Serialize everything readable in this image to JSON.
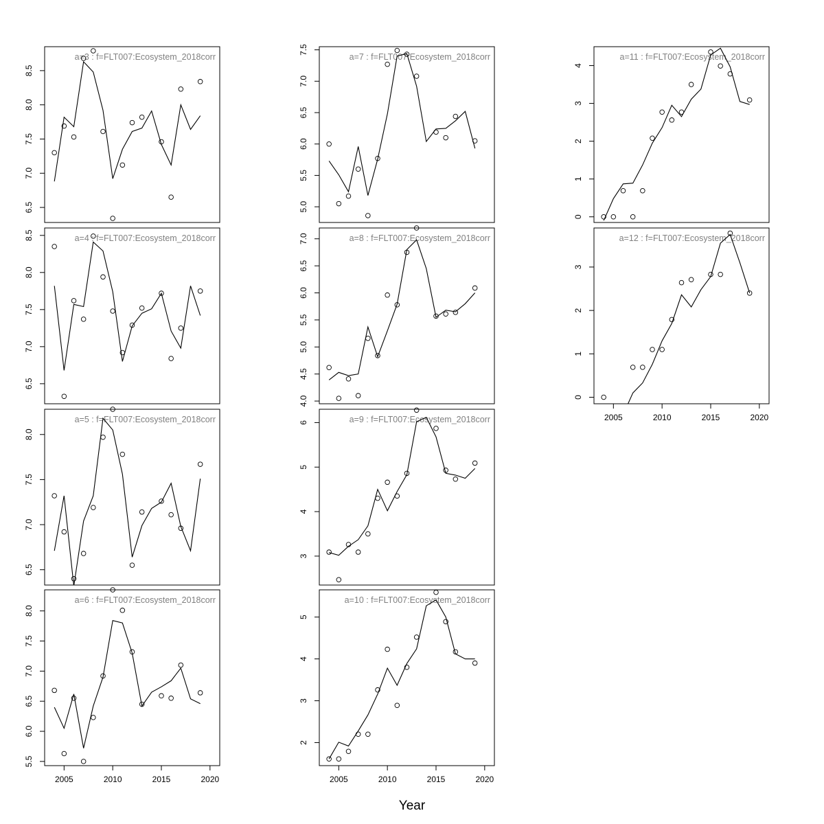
{
  "xlabel": "Year",
  "x_ticks": [
    2005,
    2010,
    2015,
    2020
  ],
  "chart_data": [
    {
      "type": "line",
      "title": "a=3  :  f=FLT007:Ecosystem_2018corr",
      "xlim": [
        2003,
        2021
      ],
      "ylim": [
        6.28,
        8.85
      ],
      "yticks": [
        6.5,
        7.0,
        7.5,
        8.0,
        8.5
      ],
      "observed": {
        "x": [
          2004,
          2005,
          2006,
          2007,
          2008,
          2009,
          2010,
          2011,
          2012,
          2013,
          2015,
          2016,
          2017,
          2019
        ],
        "y": [
          7.3,
          7.69,
          7.53,
          8.68,
          8.79,
          7.61,
          6.34,
          7.12,
          7.74,
          7.82,
          7.46,
          6.65,
          8.23,
          8.34
        ]
      },
      "fitted": {
        "x": [
          2004,
          2005,
          2006,
          2007,
          2008,
          2009,
          2010,
          2011,
          2012,
          2013,
          2014,
          2015,
          2016,
          2017,
          2018,
          2019
        ],
        "y": [
          6.88,
          7.82,
          7.68,
          8.63,
          8.48,
          7.92,
          6.92,
          7.35,
          7.61,
          7.66,
          7.91,
          7.42,
          7.12,
          8.0,
          7.64,
          7.84
        ]
      }
    },
    {
      "type": "line",
      "title": "a=4  :  f=FLT007:Ecosystem_2018corr",
      "xlim": [
        2003,
        2021
      ],
      "ylim": [
        6.23,
        8.6
      ],
      "yticks": [
        6.5,
        7.0,
        7.5,
        8.0,
        8.5
      ],
      "observed": {
        "x": [
          2004,
          2005,
          2006,
          2007,
          2008,
          2009,
          2010,
          2011,
          2012,
          2013,
          2015,
          2016,
          2017,
          2019
        ],
        "y": [
          8.35,
          6.33,
          7.62,
          7.37,
          8.49,
          7.94,
          7.48,
          6.92,
          7.29,
          7.52,
          7.72,
          6.84,
          7.25,
          7.75
        ]
      },
      "fitted": {
        "x": [
          2004,
          2005,
          2006,
          2007,
          2008,
          2009,
          2010,
          2011,
          2012,
          2013,
          2014,
          2015,
          2016,
          2017,
          2018,
          2019
        ],
        "y": [
          7.82,
          6.68,
          7.57,
          7.54,
          8.41,
          8.29,
          7.74,
          6.8,
          7.28,
          7.45,
          7.51,
          7.72,
          7.21,
          6.98,
          7.82,
          7.42
        ]
      }
    },
    {
      "type": "line",
      "title": "a=5  :  f=FLT007:Ecosystem_2018corr",
      "xlim": [
        2003,
        2021
      ],
      "ylim": [
        6.33,
        8.28
      ],
      "yticks": [
        6.5,
        7.0,
        7.5,
        8.0
      ],
      "observed": {
        "x": [
          2004,
          2005,
          2006,
          2007,
          2008,
          2009,
          2010,
          2011,
          2012,
          2013,
          2015,
          2016,
          2017,
          2019
        ],
        "y": [
          7.32,
          6.92,
          6.4,
          6.68,
          7.19,
          7.97,
          8.28,
          7.78,
          6.55,
          7.14,
          7.26,
          7.11,
          6.96,
          7.67
        ]
      },
      "fitted": {
        "x": [
          2004,
          2005,
          2006,
          2007,
          2008,
          2009,
          2010,
          2011,
          2012,
          2013,
          2014,
          2015,
          2016,
          2017,
          2018,
          2019
        ],
        "y": [
          6.71,
          7.32,
          6.32,
          7.04,
          7.32,
          8.18,
          8.05,
          7.56,
          6.64,
          6.99,
          7.18,
          7.25,
          7.46,
          6.98,
          6.71,
          7.51
        ]
      }
    },
    {
      "type": "line",
      "title": "a=6  :  f=FLT007:Ecosystem_2018corr",
      "xlim": [
        2003,
        2021
      ],
      "ylim": [
        5.43,
        8.35
      ],
      "yticks": [
        5.5,
        6.0,
        6.5,
        7.0,
        7.5,
        8.0
      ],
      "observed": {
        "x": [
          2004,
          2005,
          2006,
          2007,
          2008,
          2009,
          2010,
          2011,
          2012,
          2013,
          2015,
          2016,
          2017,
          2019
        ],
        "y": [
          6.68,
          5.63,
          6.55,
          5.5,
          6.23,
          6.92,
          8.35,
          8.01,
          7.32,
          6.45,
          6.59,
          6.55,
          7.1,
          6.64
        ]
      },
      "fitted": {
        "x": [
          2004,
          2005,
          2006,
          2007,
          2008,
          2009,
          2010,
          2011,
          2012,
          2013,
          2014,
          2015,
          2016,
          2017,
          2018,
          2019
        ],
        "y": [
          6.4,
          6.05,
          6.62,
          5.72,
          6.42,
          6.9,
          7.84,
          7.8,
          7.3,
          6.42,
          6.65,
          6.74,
          6.84,
          7.05,
          6.54,
          6.46
        ]
      }
    },
    {
      "type": "line",
      "title": "a=7  :  f=FLT007:Ecosystem_2018corr",
      "xlim": [
        2003,
        2021
      ],
      "ylim": [
        4.75,
        7.55
      ],
      "yticks": [
        5.0,
        5.5,
        6.0,
        6.5,
        7.0,
        7.5
      ],
      "observed": {
        "x": [
          2004,
          2005,
          2006,
          2007,
          2008,
          2009,
          2010,
          2011,
          2012,
          2013,
          2015,
          2016,
          2017,
          2019
        ],
        "y": [
          6.0,
          5.05,
          5.17,
          5.6,
          4.86,
          5.77,
          7.27,
          7.49,
          7.43,
          7.08,
          6.19,
          6.1,
          6.44,
          6.05
        ]
      },
      "fitted": {
        "x": [
          2004,
          2005,
          2006,
          2007,
          2008,
          2009,
          2010,
          2011,
          2012,
          2013,
          2014,
          2015,
          2016,
          2017,
          2018,
          2019
        ],
        "y": [
          5.73,
          5.51,
          5.24,
          5.96,
          5.18,
          5.76,
          6.48,
          7.4,
          7.44,
          6.92,
          6.04,
          6.24,
          6.25,
          6.37,
          6.52,
          5.93
        ]
      }
    },
    {
      "type": "line",
      "title": "a=8  :  f=FLT007:Ecosystem_2018corr",
      "xlim": [
        2003,
        2021
      ],
      "ylim": [
        3.95,
        7.2
      ],
      "yticks": [
        4.0,
        4.5,
        5.0,
        5.5,
        6.0,
        6.5,
        7.0
      ],
      "observed": {
        "x": [
          2004,
          2005,
          2006,
          2007,
          2008,
          2009,
          2010,
          2011,
          2012,
          2013,
          2015,
          2016,
          2017,
          2019
        ],
        "y": [
          4.62,
          4.05,
          4.41,
          4.1,
          5.16,
          4.84,
          5.96,
          5.78,
          6.75,
          7.2,
          5.57,
          5.61,
          5.64,
          6.09
        ]
      },
      "fitted": {
        "x": [
          2004,
          2005,
          2006,
          2007,
          2008,
          2009,
          2010,
          2011,
          2012,
          2013,
          2014,
          2015,
          2016,
          2017,
          2018,
          2019
        ],
        "y": [
          4.39,
          4.53,
          4.47,
          4.5,
          5.37,
          4.82,
          5.3,
          5.79,
          6.8,
          6.98,
          6.45,
          5.55,
          5.68,
          5.65,
          5.8,
          6.0
        ]
      }
    },
    {
      "type": "line",
      "title": "a=9  :  f=FLT007:Ecosystem_2018corr",
      "xlim": [
        2003,
        2021
      ],
      "ylim": [
        2.35,
        6.3
      ],
      "yticks": [
        3,
        4,
        5,
        6
      ],
      "observed": {
        "x": [
          2004,
          2005,
          2006,
          2007,
          2008,
          2009,
          2010,
          2011,
          2012,
          2013,
          2015,
          2016,
          2017,
          2019
        ],
        "y": [
          3.09,
          2.47,
          3.26,
          3.09,
          3.5,
          4.3,
          4.66,
          4.35,
          4.86,
          6.28,
          5.87,
          4.93,
          4.73,
          5.09
        ]
      },
      "fitted": {
        "x": [
          2004,
          2005,
          2006,
          2007,
          2008,
          2009,
          2010,
          2011,
          2012,
          2013,
          2014,
          2015,
          2016,
          2017,
          2018,
          2019
        ],
        "y": [
          3.08,
          3.02,
          3.22,
          3.37,
          3.68,
          4.5,
          4.02,
          4.45,
          4.83,
          6.02,
          6.12,
          5.68,
          4.86,
          4.82,
          4.75,
          4.97
        ]
      }
    },
    {
      "type": "line",
      "title": "a=10  :  f=FLT007:Ecosystem_2018corr",
      "xlim": [
        2003,
        2021
      ],
      "ylim": [
        1.45,
        5.65
      ],
      "yticks": [
        2,
        3,
        4,
        5
      ],
      "observed": {
        "x": [
          2004,
          2005,
          2006,
          2007,
          2008,
          2009,
          2010,
          2011,
          2012,
          2013,
          2015,
          2016,
          2017,
          2019
        ],
        "y": [
          1.61,
          1.61,
          1.79,
          2.2,
          2.2,
          3.26,
          4.23,
          2.89,
          3.8,
          4.52,
          5.59,
          4.89,
          4.17,
          3.9
        ]
      },
      "fitted": {
        "x": [
          2004,
          2005,
          2006,
          2007,
          2008,
          2009,
          2010,
          2011,
          2012,
          2013,
          2014,
          2015,
          2016,
          2017,
          2018,
          2019
        ],
        "y": [
          1.61,
          2.01,
          1.92,
          2.28,
          2.66,
          3.16,
          3.78,
          3.37,
          3.89,
          4.24,
          5.27,
          5.41,
          5.0,
          4.12,
          4.0,
          4.0
        ]
      }
    },
    {
      "type": "line",
      "title": "a=11  :  f=FLT007:Ecosystem_2018corr",
      "xlim": [
        2003,
        2021
      ],
      "ylim": [
        -0.15,
        4.5
      ],
      "yticks": [
        0,
        1,
        2,
        3,
        4
      ],
      "observed": {
        "x": [
          2004,
          2005,
          2006,
          2007,
          2008,
          2009,
          2010,
          2011,
          2012,
          2013,
          2015,
          2016,
          2017,
          2019
        ],
        "y": [
          0.0,
          0.0,
          0.69,
          0.0,
          0.69,
          2.08,
          2.77,
          2.56,
          2.77,
          3.5,
          4.36,
          3.99,
          3.78,
          3.09
        ]
      },
      "fitted": {
        "x": [
          2004,
          2005,
          2006,
          2007,
          2008,
          2009,
          2010,
          2011,
          2012,
          2013,
          2014,
          2015,
          2016,
          2017,
          2018,
          2019
        ],
        "y": [
          -0.1,
          0.48,
          0.87,
          0.89,
          1.37,
          1.95,
          2.36,
          2.95,
          2.65,
          3.11,
          3.38,
          4.28,
          4.46,
          3.97,
          3.05,
          2.97
        ]
      }
    },
    {
      "type": "line",
      "title": "a=12  :  f=FLT007:Ecosystem_2018corr",
      "xlim": [
        2003,
        2021
      ],
      "ylim": [
        -0.15,
        3.9
      ],
      "yticks": [
        0,
        1,
        2,
        3
      ],
      "observed": {
        "x": [
          2004,
          2007,
          2008,
          2009,
          2010,
          2011,
          2012,
          2013,
          2015,
          2016,
          2017,
          2019
        ],
        "y": [
          0.0,
          0.69,
          0.69,
          1.1,
          1.1,
          1.79,
          2.64,
          2.71,
          2.83,
          2.83,
          3.78,
          2.4
        ]
      },
      "fitted": {
        "x": [
          2006.5,
          2007,
          2008,
          2009,
          2010,
          2011,
          2012,
          2013,
          2014,
          2015,
          2016,
          2017,
          2018,
          2019
        ],
        "y": [
          -0.15,
          0.1,
          0.33,
          0.76,
          1.3,
          1.7,
          2.36,
          2.08,
          2.48,
          2.78,
          3.55,
          3.75,
          3.1,
          2.4
        ]
      }
    }
  ]
}
